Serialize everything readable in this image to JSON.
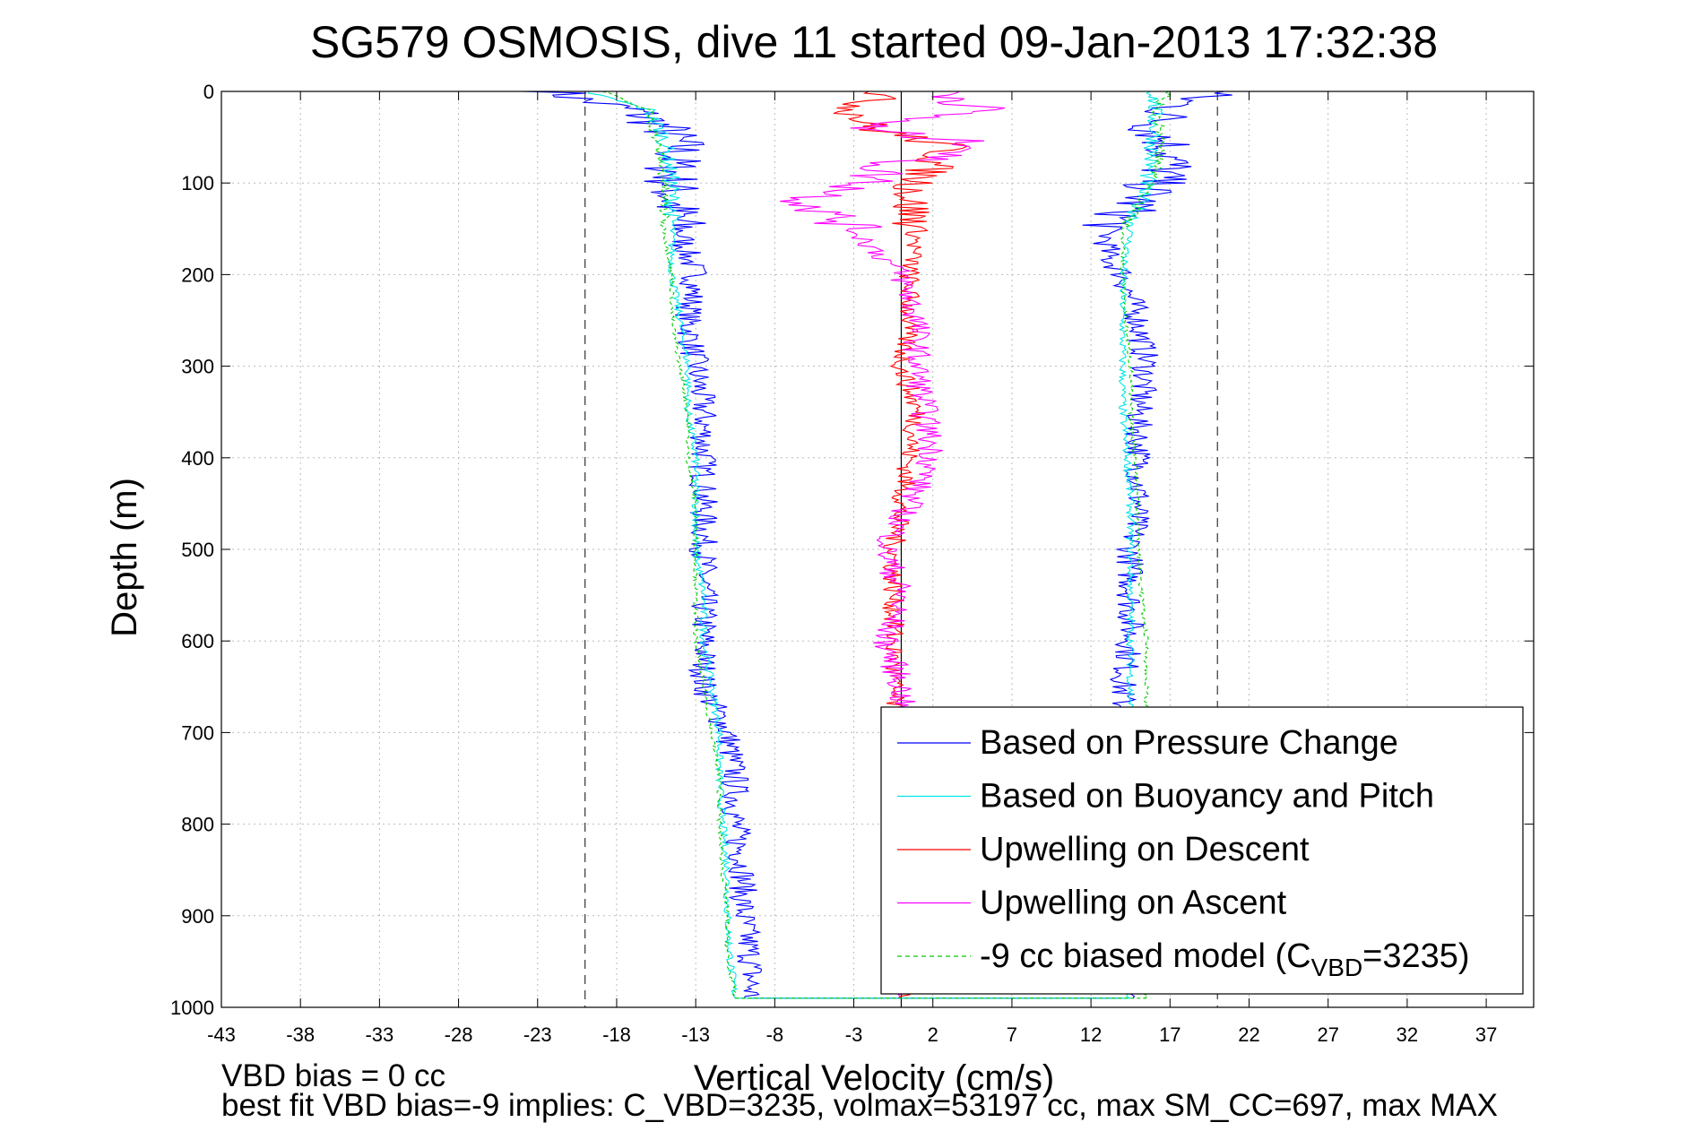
{
  "chart_data": {
    "type": "line",
    "title": "SG579 OSMOSIS, dive 11 started 09-Jan-2013 17:32:38",
    "xlabel": "Vertical Velocity (cm/s)",
    "ylabel": "Depth (m)",
    "xlim": [
      -43,
      40
    ],
    "ylim": [
      0,
      1000
    ],
    "y_reversed": true,
    "grid": true,
    "xticks": [
      -43,
      -38,
      -33,
      -28,
      -23,
      -18,
      -13,
      -8,
      -3,
      2,
      7,
      12,
      17,
      22,
      27,
      32,
      37
    ],
    "yticks": [
      0,
      100,
      200,
      300,
      400,
      500,
      600,
      700,
      800,
      900,
      1000
    ],
    "reference_lines": {
      "solid_x": [
        0
      ],
      "dashed_x": [
        -20,
        20
      ]
    },
    "legend_position": "bottom-right",
    "series": [
      {
        "name": "Based on Pressure Change",
        "color": "#0000ff",
        "depth": [
          0,
          10,
          20,
          40,
          60,
          80,
          100,
          120,
          150,
          180,
          200,
          250,
          300,
          350,
          400,
          450,
          500,
          550,
          600,
          650,
          700,
          750,
          800,
          850,
          900,
          950,
          980,
          990
        ],
        "descent": [
          -22,
          -20,
          -17,
          -15,
          -14,
          -14.5,
          -14.5,
          -14.5,
          -14,
          -13.5,
          -13,
          -13.5,
          -13,
          -12.5,
          -12.5,
          -12.5,
          -12.5,
          -12.5,
          -12.5,
          -12.5,
          -11,
          -10.5,
          -10.5,
          -10,
          -10,
          -9.5,
          -9.5,
          -9.5
        ],
        "ascent": [
          20,
          18,
          17,
          16,
          17,
          17,
          16,
          15,
          13,
          13,
          14,
          15,
          15.5,
          15,
          15,
          15,
          14.5,
          14.5,
          14.5,
          14,
          14,
          14,
          14,
          14,
          14,
          14,
          14,
          14
        ]
      },
      {
        "name": "Based on Buoyancy and Pitch",
        "color": "#00e5e5",
        "depth": [
          0,
          20,
          50,
          100,
          150,
          200,
          250,
          300,
          350,
          400,
          450,
          500,
          550,
          600,
          650,
          700,
          750,
          800,
          850,
          900,
          950,
          990
        ],
        "descent": [
          -20,
          -16,
          -15,
          -14.5,
          -14.5,
          -14.5,
          -14,
          -13.5,
          -13.5,
          -13,
          -13,
          -13,
          -12.5,
          -12.5,
          -12,
          -11.5,
          -11.5,
          -11.3,
          -11,
          -11,
          -10.8,
          -10.5
        ],
        "ascent": [
          16,
          16,
          16,
          15.5,
          14.5,
          14,
          14,
          14,
          14,
          14.3,
          14.5,
          14.5,
          14.5,
          14.5,
          14.5,
          14.5,
          14.5,
          14.5,
          14.5,
          14.5,
          14.5,
          14.5
        ]
      },
      {
        "name": "Upwelling on Descent",
        "color": "#ff0000",
        "depth": [
          0,
          20,
          40,
          60,
          80,
          100,
          120,
          150,
          200,
          250,
          300,
          350,
          400,
          450,
          500,
          550,
          600,
          650,
          990
        ],
        "values": [
          -1,
          -3,
          -2,
          3,
          2,
          1,
          0.5,
          1,
          0.5,
          0.5,
          0,
          1,
          0.5,
          0,
          -0.5,
          -0.5,
          -0.5,
          -0.5,
          0
        ]
      },
      {
        "name": "Upwelling on Ascent",
        "color": "#ff00ff",
        "depth": [
          0,
          20,
          40,
          60,
          80,
          100,
          120,
          150,
          200,
          250,
          300,
          350,
          400,
          450,
          500,
          550,
          600,
          650,
          990
        ],
        "values": [
          3,
          5,
          -3,
          6,
          -1,
          -2,
          -6,
          -3,
          0,
          1,
          1,
          1.5,
          2,
          0.5,
          -1,
          0,
          -1,
          0,
          0
        ]
      },
      {
        "name": "-9 cc biased model (C_VBD=3235)",
        "color": "#00cc00",
        "dashed": true,
        "depth": [
          0,
          20,
          50,
          100,
          150,
          200,
          250,
          300,
          350,
          400,
          450,
          500,
          550,
          600,
          650,
          700,
          750,
          800,
          850,
          900,
          950,
          990
        ],
        "descent": [
          -19,
          -16,
          -15.5,
          -15,
          -15,
          -14.5,
          -14.5,
          -14,
          -13.5,
          -13.5,
          -13,
          -13,
          -13,
          -13,
          -12.5,
          -12,
          -11.5,
          -11.5,
          -11.3,
          -11,
          -11,
          -10.5
        ],
        "ascent": [
          17,
          16,
          16.5,
          16,
          14,
          14,
          14.2,
          14.5,
          14.5,
          14.8,
          15,
          15,
          15.2,
          15.5,
          15.5,
          15.5,
          15.5,
          15.5,
          15.5,
          15.5,
          15.5,
          15.5
        ]
      }
    ],
    "legend": [
      {
        "label": "Based on Pressure Change",
        "color": "#0000ff",
        "dashed": false
      },
      {
        "label": "Based on Buoyancy and Pitch",
        "color": "#00e5e5",
        "dashed": false
      },
      {
        "label": "Upwelling on Descent",
        "color": "#ff0000",
        "dashed": false
      },
      {
        "label": "Upwelling on Ascent",
        "color": "#ff00ff",
        "dashed": false
      },
      {
        "label_prefix": "-9 cc biased model (C",
        "label_sub": "VBD",
        "label_suffix": "=3235)",
        "color": "#00cc00",
        "dashed": true
      }
    ]
  },
  "footer": {
    "line1": "VBD bias = 0 cc",
    "line2": "best fit VBD bias=-9 implies: C_VBD=3235, volmax=53197 cc, max SM_CC=697, max MAX"
  }
}
